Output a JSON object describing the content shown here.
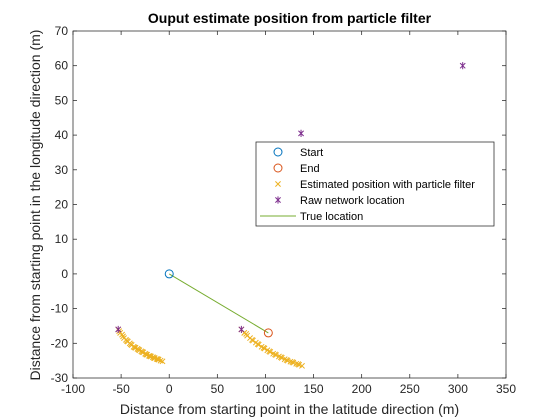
{
  "chart_data": {
    "type": "scatter",
    "title": "Ouput estimate position from particle filter",
    "xlabel": "Distance from starting point in the latitude direction (m)",
    "ylabel": "Distance from starting point in the longitude direction (m)",
    "xlim": [
      -100,
      350
    ],
    "ylim": [
      -30,
      70
    ],
    "xticks": [
      -100,
      -50,
      0,
      50,
      100,
      150,
      200,
      250,
      300,
      350
    ],
    "yticks": [
      -30,
      -20,
      -10,
      0,
      10,
      20,
      30,
      40,
      50,
      60,
      70
    ],
    "grid": false,
    "legend_position": "right",
    "series": [
      {
        "name": "Start",
        "marker": "circle",
        "color": "#0072BD",
        "points": [
          [
            0,
            0
          ]
        ]
      },
      {
        "name": "End",
        "marker": "circle",
        "color": "#D95319",
        "points": [
          [
            103,
            -17
          ]
        ]
      },
      {
        "name": "Estimated position with particle filter",
        "marker": "x",
        "color": "#EDB120",
        "points": [
          [
            -53,
            -16
          ],
          [
            -51,
            -17
          ],
          [
            -49,
            -17.5
          ],
          [
            -47,
            -18.5
          ],
          [
            -45,
            -19
          ],
          [
            -43,
            -19.5
          ],
          [
            -41,
            -20
          ],
          [
            -39,
            -20.5
          ],
          [
            -37,
            -21
          ],
          [
            -35,
            -21.3
          ],
          [
            -33,
            -21.6
          ],
          [
            -31,
            -22
          ],
          [
            -29,
            -22.3
          ],
          [
            -27,
            -22.6
          ],
          [
            -25,
            -23
          ],
          [
            -23,
            -23.3
          ],
          [
            -21,
            -23.6
          ],
          [
            -19,
            -23.8
          ],
          [
            -17,
            -24
          ],
          [
            -15,
            -24.3
          ],
          [
            -13,
            -24.5
          ],
          [
            -11,
            -24.7
          ],
          [
            -9,
            -25
          ],
          [
            -7,
            -25.2
          ],
          [
            -52,
            -16.5
          ],
          [
            -48,
            -18
          ],
          [
            -44,
            -19.3
          ],
          [
            -40,
            -20.3
          ],
          [
            -36,
            -21.2
          ],
          [
            -32,
            -21.8
          ],
          [
            -28,
            -22.5
          ],
          [
            -24,
            -23.2
          ],
          [
            -20,
            -23.7
          ],
          [
            -16,
            -24.2
          ],
          [
            -12,
            -24.6
          ],
          [
            75,
            -16
          ],
          [
            78,
            -17
          ],
          [
            81,
            -17.8
          ],
          [
            84,
            -18.5
          ],
          [
            87,
            -19.2
          ],
          [
            90,
            -19.8
          ],
          [
            93,
            -20.4
          ],
          [
            96,
            -21
          ],
          [
            99,
            -21.5
          ],
          [
            102,
            -22
          ],
          [
            105,
            -22.5
          ],
          [
            108,
            -23
          ],
          [
            111,
            -23.4
          ],
          [
            114,
            -23.8
          ],
          [
            117,
            -24.2
          ],
          [
            120,
            -24.6
          ],
          [
            123,
            -25
          ],
          [
            126,
            -25.3
          ],
          [
            129,
            -25.6
          ],
          [
            132,
            -25.9
          ],
          [
            135,
            -26.2
          ],
          [
            138,
            -26.5
          ],
          [
            80,
            -17.3
          ],
          [
            86,
            -19
          ],
          [
            92,
            -20.2
          ],
          [
            98,
            -21.3
          ],
          [
            104,
            -22.3
          ],
          [
            110,
            -23.2
          ],
          [
            116,
            -24
          ],
          [
            122,
            -24.8
          ],
          [
            128,
            -25.4
          ],
          [
            134,
            -26
          ]
        ]
      },
      {
        "name": "Raw network location",
        "marker": "asterisk",
        "color": "#7E2F8E",
        "points": [
          [
            -53,
            -16
          ],
          [
            75,
            -16
          ],
          [
            137,
            40.5
          ],
          [
            305,
            60
          ]
        ]
      },
      {
        "name": "True location",
        "marker": "line",
        "color": "#77AC30",
        "points": [
          [
            0,
            0
          ],
          [
            103,
            -17
          ]
        ]
      }
    ]
  }
}
